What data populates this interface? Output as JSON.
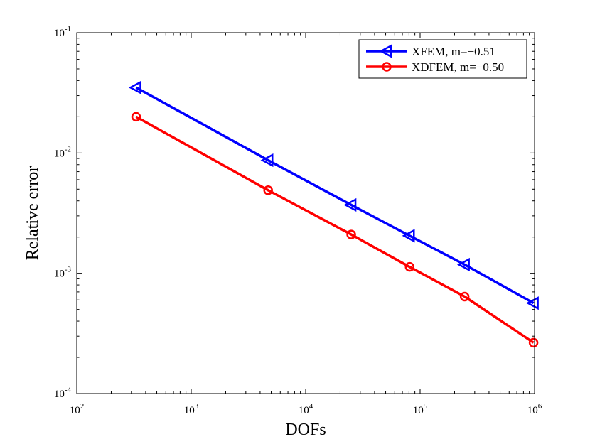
{
  "chart_data": {
    "type": "line",
    "xscale": "log",
    "yscale": "log",
    "title": "",
    "xlabel": "DOFs",
    "ylabel": "Relative error",
    "xlim": [
      100,
      1000000
    ],
    "ylim": [
      0.0001,
      0.1
    ],
    "x_ticks": [
      {
        "value": 100,
        "base": "10",
        "exp": "2"
      },
      {
        "value": 1000,
        "base": "10",
        "exp": "3"
      },
      {
        "value": 10000,
        "base": "10",
        "exp": "4"
      },
      {
        "value": 100000,
        "base": "10",
        "exp": "5"
      },
      {
        "value": 1000000,
        "base": "10",
        "exp": "6"
      }
    ],
    "y_ticks": [
      {
        "value": 0.0001,
        "base": "10",
        "exp": "-4"
      },
      {
        "value": 0.001,
        "base": "10",
        "exp": "-3"
      },
      {
        "value": 0.01,
        "base": "10",
        "exp": "-2"
      },
      {
        "value": 0.1,
        "base": "10",
        "exp": "-1"
      }
    ],
    "grid": false,
    "legend_position": "top-right",
    "series": [
      {
        "name": "XFEM, m=−0.51",
        "color": "#0000ff",
        "marker": "triangle-left",
        "x": [
          330,
          4700,
          25000,
          81000,
          245000,
          980000
        ],
        "y": [
          0.035,
          0.0087,
          0.0037,
          0.00205,
          0.00118,
          0.000565
        ]
      },
      {
        "name": "XDFEM, m=−0.50",
        "color": "#ff0000",
        "marker": "circle",
        "x": [
          330,
          4700,
          25000,
          81000,
          245000,
          980000
        ],
        "y": [
          0.02,
          0.0049,
          0.0021,
          0.00113,
          0.00064,
          0.000265
        ]
      }
    ]
  }
}
